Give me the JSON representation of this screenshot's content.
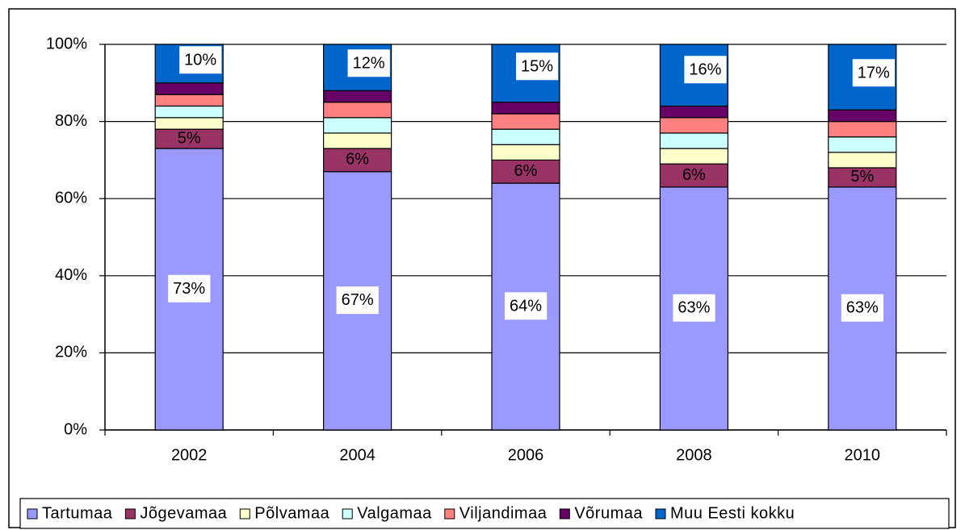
{
  "chart_data": {
    "type": "bar",
    "stacked": true,
    "categories": [
      "2002",
      "2004",
      "2006",
      "2008",
      "2010"
    ],
    "series": [
      {
        "name": "Tartumaa",
        "color": "#9999ff",
        "values": [
          73,
          67,
          64,
          63,
          63
        ],
        "value_labels": [
          "73%",
          "67%",
          "64%",
          "63%",
          "63%"
        ]
      },
      {
        "name": "Jõgevamaa",
        "color": "#993366",
        "values": [
          5,
          6,
          6,
          6,
          5
        ],
        "value_labels": [
          "5%",
          "6%",
          "6%",
          "6%",
          "5%"
        ]
      },
      {
        "name": "Põlvamaa",
        "color": "#ffffcc",
        "values": [
          3,
          4,
          4,
          4,
          4
        ]
      },
      {
        "name": "Valgamaa",
        "color": "#ccffff",
        "values": [
          3,
          4,
          4,
          4,
          4
        ]
      },
      {
        "name": "Viljandimaa",
        "color": "#ff8080",
        "values": [
          3,
          4,
          4,
          4,
          4
        ]
      },
      {
        "name": "Võrumaa",
        "color": "#660066",
        "values": [
          3,
          3,
          3,
          3,
          3
        ]
      },
      {
        "name": "Muu Eesti kokku",
        "color": "#0066cc",
        "values": [
          10,
          12,
          15,
          16,
          17
        ],
        "value_labels": [
          "10%",
          "12%",
          "15%",
          "16%",
          "17%"
        ]
      }
    ],
    "ylim": [
      0,
      100
    ],
    "yticks": [
      {
        "value": 0,
        "label": "0%"
      },
      {
        "value": 20,
        "label": "20%"
      },
      {
        "value": 40,
        "label": "40%"
      },
      {
        "value": 60,
        "label": "60%"
      },
      {
        "value": 80,
        "label": "80%"
      },
      {
        "value": 100,
        "label": "100%"
      }
    ],
    "grid": true,
    "legend": "bottom"
  }
}
